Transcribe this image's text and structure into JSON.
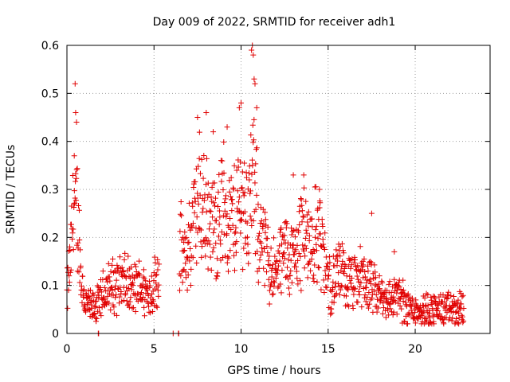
{
  "chart_data": {
    "type": "scatter",
    "title": "Day 009 of 2022, SRMTID for receiver adh1",
    "xlabel": "GPS time / hours",
    "ylabel": "SRMTID / TECUs",
    "xlim": [
      0,
      24.3
    ],
    "ylim": [
      0,
      0.6
    ],
    "grid": true,
    "marker": "+",
    "color": "#e00000",
    "x_ticks": [
      0,
      5,
      10,
      15,
      20
    ],
    "x_tick_labels": [
      "0",
      "5",
      "10",
      "15",
      "20"
    ],
    "y_ticks": [
      0,
      0.1,
      0.2,
      0.3,
      0.4,
      0.5,
      0.6
    ],
    "y_tick_labels": [
      "0",
      "0.1",
      "0.2",
      "0.3",
      "0.4",
      "0.5",
      "0.6"
    ],
    "series": [
      {
        "name": "SRMTID",
        "profile_x": [
          0.0,
          0.2,
          0.4,
          0.5,
          0.6,
          0.8,
          1.0,
          1.4,
          1.8,
          2.2,
          2.7,
          3.2,
          3.7,
          4.2,
          4.7,
          5.0,
          5.2,
          6.5,
          6.8,
          7.2,
          7.6,
          8.0,
          8.5,
          9.0,
          9.5,
          10.0,
          10.4,
          10.7,
          11.0,
          11.3,
          11.7,
          12.0,
          12.5,
          13.0,
          13.5,
          14.0,
          14.5,
          14.9,
          15.2,
          15.6,
          16.0,
          16.5,
          17.0,
          17.5,
          18.0,
          18.5,
          19.0,
          19.5,
          20.0,
          20.5,
          21.0,
          21.5,
          22.0,
          22.5,
          22.8
        ],
        "profile_y": [
          0.08,
          0.15,
          0.28,
          0.24,
          0.26,
          0.12,
          0.07,
          0.05,
          0.06,
          0.09,
          0.1,
          0.11,
          0.09,
          0.1,
          0.08,
          0.1,
          0.12,
          0.18,
          0.14,
          0.22,
          0.28,
          0.25,
          0.22,
          0.27,
          0.23,
          0.28,
          0.25,
          0.32,
          0.22,
          0.18,
          0.14,
          0.12,
          0.17,
          0.15,
          0.22,
          0.18,
          0.22,
          0.12,
          0.1,
          0.13,
          0.11,
          0.1,
          0.12,
          0.09,
          0.08,
          0.07,
          0.08,
          0.06,
          0.05,
          0.05,
          0.05,
          0.05,
          0.05,
          0.05,
          0.05
        ],
        "spikes": [
          {
            "x": 0.47,
            "y": 0.52
          },
          {
            "x": 0.5,
            "y": 0.46
          },
          {
            "x": 0.55,
            "y": 0.44
          },
          {
            "x": 0.42,
            "y": 0.37
          },
          {
            "x": 7.5,
            "y": 0.45
          },
          {
            "x": 8.0,
            "y": 0.46
          },
          {
            "x": 8.4,
            "y": 0.42
          },
          {
            "x": 9.2,
            "y": 0.43
          },
          {
            "x": 9.9,
            "y": 0.47
          },
          {
            "x": 10.0,
            "y": 0.48
          },
          {
            "x": 10.6,
            "y": 0.59
          },
          {
            "x": 10.65,
            "y": 0.6
          },
          {
            "x": 10.7,
            "y": 0.58
          },
          {
            "x": 10.75,
            "y": 0.53
          },
          {
            "x": 10.8,
            "y": 0.52
          },
          {
            "x": 10.9,
            "y": 0.47
          },
          {
            "x": 13.0,
            "y": 0.33
          },
          {
            "x": 13.6,
            "y": 0.33
          },
          {
            "x": 14.5,
            "y": 0.3
          },
          {
            "x": 17.5,
            "y": 0.25
          },
          {
            "x": 18.8,
            "y": 0.17
          }
        ],
        "near_zero": [
          {
            "x": 1.8,
            "y": 0.0
          },
          {
            "x": 1.82,
            "y": 0.0
          },
          {
            "x": 6.1,
            "y": 0.0
          },
          {
            "x": 6.4,
            "y": 0.0
          },
          {
            "x": 6.42,
            "y": 0.0
          }
        ]
      }
    ]
  }
}
